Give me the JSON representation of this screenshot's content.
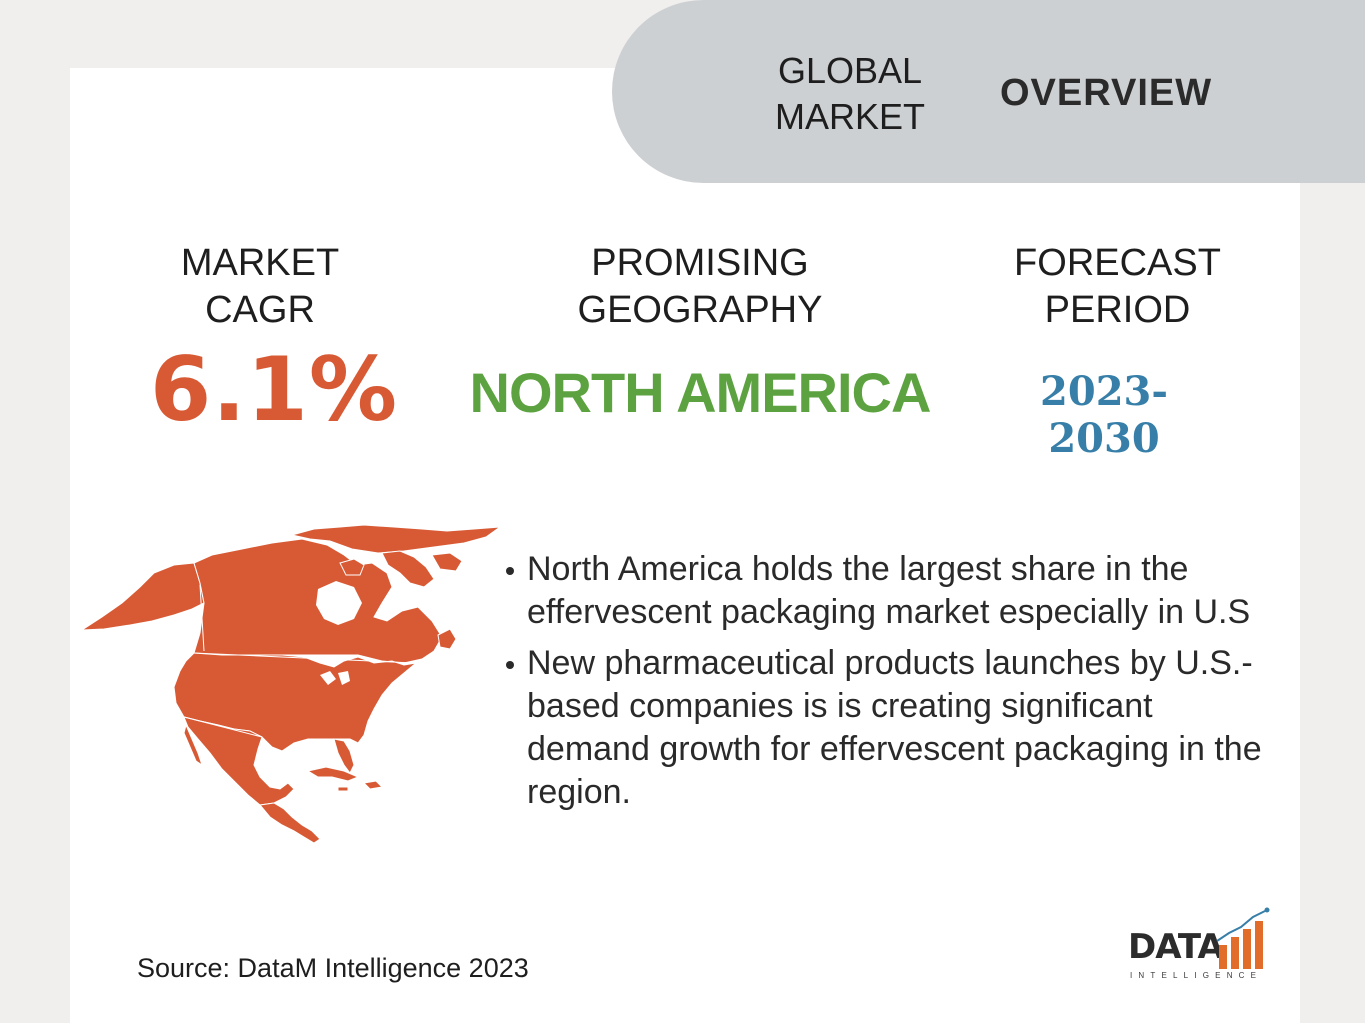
{
  "header": {
    "global_line1": "GLOBAL",
    "global_line2": "MARKET",
    "overview": "OVERVIEW"
  },
  "stats": [
    {
      "label_line1": "MARKET",
      "label_line2": "CAGR",
      "value": "6.1%",
      "color": "#d85a35"
    },
    {
      "label_line1": "PROMISING",
      "label_line2": "GEOGRAPHY",
      "value": "NORTH AMERICA",
      "color": "#5da240"
    },
    {
      "label_line1": "FORECAST",
      "label_line2": "PERIOD",
      "value": "2023-2030",
      "color": "#377fa8"
    }
  ],
  "bullets": [
    "North America holds the largest share in the effervescent packaging market especially in U.S",
    "New pharmaceutical products launches by U.S.-based companies is is creating significant demand growth for effervescent packaging in the region."
  ],
  "source": "Source: DataM Intelligence 2023",
  "logo": {
    "word": "DATA",
    "sub": "INTELLIGENCE",
    "icon": "bar-chart-logo-icon"
  },
  "map": {
    "icon": "north-america-map-icon",
    "fill": "#d85a35"
  },
  "colors": {
    "background": "#f0efed",
    "card": "#ffffff",
    "header_pill": "#cdd0d3"
  }
}
